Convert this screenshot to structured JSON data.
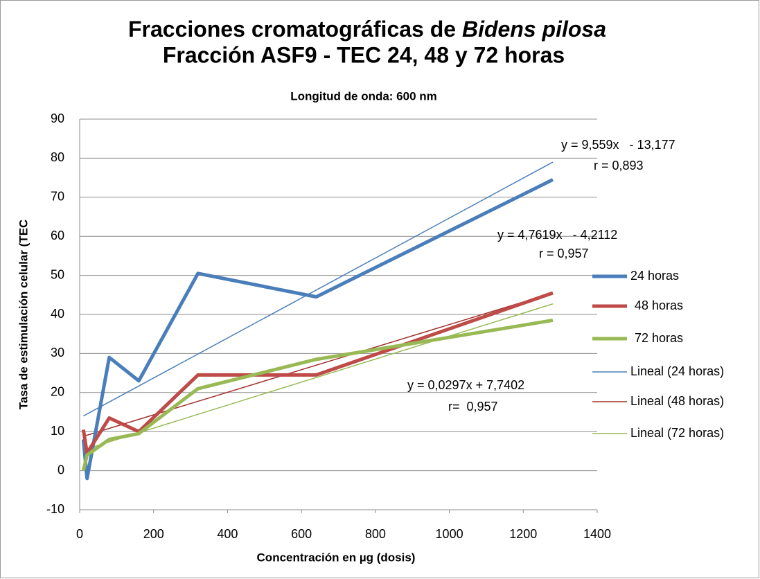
{
  "chart_data": {
    "type": "line",
    "title": {
      "line1": "Fracciones cromatográficas de",
      "line1_italic": "Bidens pilosa",
      "line2": "Fracción ASF9 - TEC 24, 48 y 72 horas"
    },
    "subtitle": "Longitud de onda: 600 nm",
    "x_label": "Concentración en µg (dosis)",
    "y_label": "Tasa de estimulación celular (TEC",
    "x": [
      10,
      20,
      80,
      160,
      320,
      640,
      1280
    ],
    "series": [
      {
        "name": "24 horas",
        "color": "#4a7ebb",
        "width": "thick",
        "values": [
          8,
          -2,
          29,
          23,
          50.5,
          44.5,
          74.5
        ]
      },
      {
        "name": "48 horas",
        "color": "#be4b48",
        "width": "thick",
        "values": [
          10.5,
          4.5,
          13.5,
          10,
          24.5,
          24.5,
          45.5
        ]
      },
      {
        "name": "72 horas",
        "color": "#98b954",
        "width": "thick",
        "values": [
          0,
          4,
          8,
          9.5,
          21,
          28.5,
          38.5
        ]
      },
      {
        "name": "Lineal (24 horas)",
        "color": "#4a7ebb",
        "width": "thin",
        "x": [
          10,
          1280
        ],
        "values": [
          14,
          79
        ]
      },
      {
        "name": "Lineal (48 horas)",
        "color": "#a0302c",
        "width": "thin",
        "x": [
          10,
          1280
        ],
        "values": [
          8.8,
          45.5
        ]
      },
      {
        "name": "Lineal (72 horas)",
        "color": "#98b954",
        "width": "thin",
        "x": [
          10,
          1280
        ],
        "values": [
          5.3,
          42.7
        ]
      }
    ],
    "annotations": [
      {
        "text": "y = 9,559x   - 13,177",
        "color": "#31849b"
      },
      {
        "text": "r = 0,893",
        "color": "#31849b"
      },
      {
        "text": "y = 4,7619x   - 4,2112",
        "color": "#c0302c"
      },
      {
        "text": "r = 0,957",
        "color": "#c0302c"
      },
      {
        "text": "y = 0,0297x + 7,7402",
        "color": "#92c050"
      },
      {
        "text": "r=  0,957",
        "color": "#92c050"
      }
    ],
    "xlim": [
      0,
      1400
    ],
    "xticks": [
      0,
      200,
      400,
      600,
      800,
      1000,
      1200,
      1400
    ],
    "ylim": [
      -10,
      90
    ],
    "yticks": [
      -10,
      0,
      10,
      20,
      30,
      40,
      50,
      60,
      70,
      80,
      90
    ],
    "grid": true
  }
}
